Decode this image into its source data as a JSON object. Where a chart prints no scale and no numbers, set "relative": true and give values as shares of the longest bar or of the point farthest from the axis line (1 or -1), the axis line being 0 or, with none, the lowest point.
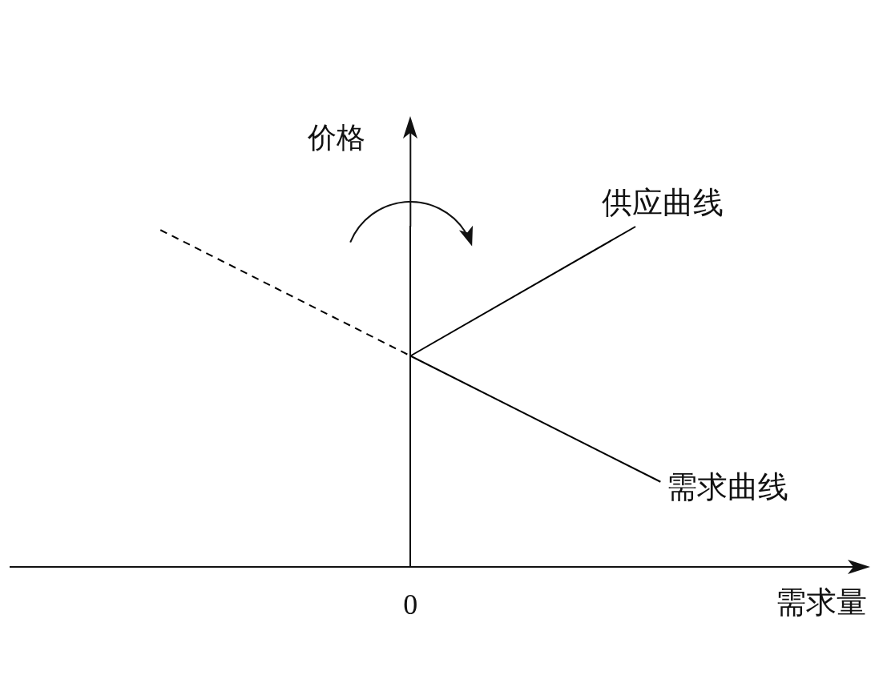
{
  "chart_data": {
    "type": "line",
    "xlabel": "需求量",
    "ylabel": "价格",
    "relative": true,
    "legend": false,
    "annotations": [
      "0"
    ],
    "categories": [
      null,
      null,
      null,
      null,
      null,
      null,
      null,
      null,
      null,
      null,
      null,
      null,
      null,
      null,
      null,
      null,
      null,
      null,
      null,
      null,
      null,
      null,
      null,
      null,
      null,
      null,
      null,
      null,
      null,
      null,
      null,
      null,
      null,
      null,
      null
    ],
    "series": [
      {
        "color": "#000000",
        "line_style": "dashed",
        "values": [
          null,
          null,
          null,
          null,
          null,
          null,
          0.99,
          null,
          null,
          null,
          null,
          null,
          null,
          null,
          null,
          null,
          0.62,
          null,
          null,
          null,
          null,
          null,
          null,
          null,
          null,
          null,
          null,
          null,
          null,
          null,
          null,
          null,
          null,
          null,
          null
        ]
      },
      {
        "name": "供应曲线",
        "color": "#000000",
        "values": [
          null,
          null,
          null,
          null,
          null,
          null,
          null,
          null,
          null,
          null,
          null,
          null,
          null,
          null,
          null,
          null,
          0.62,
          null,
          null,
          null,
          null,
          null,
          null,
          null,
          null,
          1,
          null,
          null,
          null,
          null,
          null,
          null,
          null,
          null,
          null
        ]
      },
      {
        "name": "需求曲线",
        "color": "#000000",
        "values": [
          null,
          null,
          null,
          null,
          null,
          null,
          null,
          null,
          null,
          null,
          null,
          null,
          null,
          null,
          null,
          null,
          0.62,
          null,
          null,
          null,
          null,
          null,
          null,
          null,
          null,
          null,
          0.25,
          null,
          null,
          null,
          null,
          null,
          null,
          null,
          null
        ]
      }
    ]
  }
}
